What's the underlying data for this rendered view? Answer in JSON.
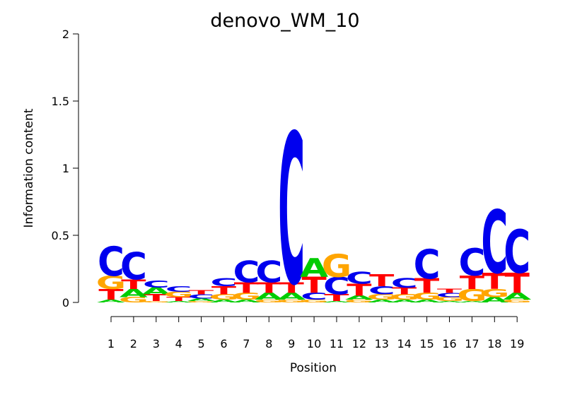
{
  "chart_data": {
    "type": "sequence-logo",
    "title": "denovo_WM_10",
    "xlabel": "Position",
    "ylabel": "Information content",
    "ylim": [
      0,
      2
    ],
    "yticks": [
      0,
      0.5,
      1,
      1.5,
      2
    ],
    "ytick_labels": [
      "0",
      "0.5",
      "1",
      "1.5",
      "2"
    ],
    "colors": {
      "A": "#00cc00",
      "C": "#0000ee",
      "G": "#ffa500",
      "T": "#ff0000"
    },
    "positions": [
      {
        "label": "1",
        "stack": [
          {
            "l": "A",
            "h": 0.02
          },
          {
            "l": "T",
            "h": 0.08
          },
          {
            "l": "G",
            "h": 0.1
          },
          {
            "l": "C",
            "h": 0.22
          }
        ]
      },
      {
        "label": "2",
        "stack": [
          {
            "l": "G",
            "h": 0.04
          },
          {
            "l": "A",
            "h": 0.06
          },
          {
            "l": "T",
            "h": 0.07
          },
          {
            "l": "C",
            "h": 0.2
          }
        ]
      },
      {
        "label": "3",
        "stack": [
          {
            "l": "G",
            "h": 0.01
          },
          {
            "l": "T",
            "h": 0.05
          },
          {
            "l": "A",
            "h": 0.05
          },
          {
            "l": "C",
            "h": 0.05
          }
        ]
      },
      {
        "label": "4",
        "stack": [
          {
            "l": "A",
            "h": 0.01
          },
          {
            "l": "T",
            "h": 0.03
          },
          {
            "l": "G",
            "h": 0.04
          },
          {
            "l": "C",
            "h": 0.04
          }
        ]
      },
      {
        "label": "5",
        "stack": [
          {
            "l": "G",
            "h": 0.01
          },
          {
            "l": "A",
            "h": 0.02
          },
          {
            "l": "C",
            "h": 0.03
          },
          {
            "l": "T",
            "h": 0.03
          }
        ]
      },
      {
        "label": "6",
        "stack": [
          {
            "l": "A",
            "h": 0.02
          },
          {
            "l": "G",
            "h": 0.04
          },
          {
            "l": "T",
            "h": 0.06
          },
          {
            "l": "C",
            "h": 0.06
          }
        ]
      },
      {
        "label": "7",
        "stack": [
          {
            "l": "A",
            "h": 0.02
          },
          {
            "l": "G",
            "h": 0.05
          },
          {
            "l": "T",
            "h": 0.08
          },
          {
            "l": "C",
            "h": 0.16
          }
        ]
      },
      {
        "label": "8",
        "stack": [
          {
            "l": "G",
            "h": 0.02
          },
          {
            "l": "A",
            "h": 0.05
          },
          {
            "l": "T",
            "h": 0.08
          },
          {
            "l": "C",
            "h": 0.16
          }
        ]
      },
      {
        "label": "9",
        "stack": [
          {
            "l": "G",
            "h": 0.02
          },
          {
            "l": "A",
            "h": 0.05
          },
          {
            "l": "T",
            "h": 0.08
          },
          {
            "l": "C",
            "h": 1.12
          }
        ]
      },
      {
        "label": "10",
        "stack": [
          {
            "l": "G",
            "h": 0.02
          },
          {
            "l": "C",
            "h": 0.05
          },
          {
            "l": "T",
            "h": 0.12
          },
          {
            "l": "A",
            "h": 0.14
          }
        ]
      },
      {
        "label": "11",
        "stack": [
          {
            "l": "A",
            "h": 0.01
          },
          {
            "l": "T",
            "h": 0.05
          },
          {
            "l": "C",
            "h": 0.13
          },
          {
            "l": "G",
            "h": 0.17
          }
        ]
      },
      {
        "label": "12",
        "stack": [
          {
            "l": "G",
            "h": 0.02
          },
          {
            "l": "A",
            "h": 0.03
          },
          {
            "l": "T",
            "h": 0.09
          },
          {
            "l": "C",
            "h": 0.09
          }
        ]
      },
      {
        "label": "13",
        "stack": [
          {
            "l": "A",
            "h": 0.02
          },
          {
            "l": "G",
            "h": 0.04
          },
          {
            "l": "C",
            "h": 0.06
          },
          {
            "l": "T",
            "h": 0.09
          }
        ]
      },
      {
        "label": "14",
        "stack": [
          {
            "l": "A",
            "h": 0.02
          },
          {
            "l": "G",
            "h": 0.04
          },
          {
            "l": "T",
            "h": 0.05
          },
          {
            "l": "C",
            "h": 0.07
          }
        ]
      },
      {
        "label": "15",
        "stack": [
          {
            "l": "A",
            "h": 0.02
          },
          {
            "l": "G",
            "h": 0.05
          },
          {
            "l": "T",
            "h": 0.11
          },
          {
            "l": "C",
            "h": 0.22
          }
        ]
      },
      {
        "label": "16",
        "stack": [
          {
            "l": "A",
            "h": 0.01
          },
          {
            "l": "G",
            "h": 0.03
          },
          {
            "l": "C",
            "h": 0.03
          },
          {
            "l": "T",
            "h": 0.03
          }
        ]
      },
      {
        "label": "17",
        "stack": [
          {
            "l": "A",
            "h": 0.01
          },
          {
            "l": "G",
            "h": 0.09
          },
          {
            "l": "T",
            "h": 0.1
          },
          {
            "l": "C",
            "h": 0.2
          }
        ]
      },
      {
        "label": "18",
        "stack": [
          {
            "l": "A",
            "h": 0.04
          },
          {
            "l": "G",
            "h": 0.06
          },
          {
            "l": "T",
            "h": 0.12
          },
          {
            "l": "C",
            "h": 0.47
          }
        ]
      },
      {
        "label": "19",
        "stack": [
          {
            "l": "G",
            "h": 0.02
          },
          {
            "l": "A",
            "h": 0.05
          },
          {
            "l": "T",
            "h": 0.15
          },
          {
            "l": "C",
            "h": 0.32
          }
        ]
      }
    ]
  }
}
